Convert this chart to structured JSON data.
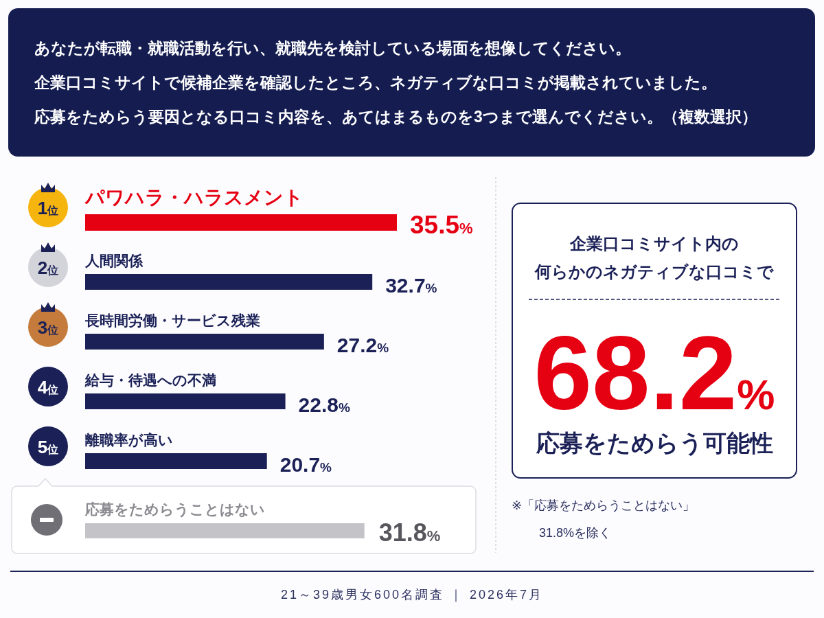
{
  "chart_data": [
    {
      "type": "bar",
      "orientation": "horizontal",
      "title": "あなたが転職・就職活動を行い、就職先を検討している場面を想像してください。企業口コミサイトで候補企業を確認したところ、ネガティブな口コミが掲載されていました。応募をためらう要因となる口コミ内容を、あてはまるものを3つまで選んでください。（複数選択）",
      "categories": [
        "パワハラ・ハラスメント",
        "人間関係",
        "長時間労働・サービス残業",
        "給与・待遇への不満",
        "離職率が高い",
        "応募をためらうことはない"
      ],
      "values": [
        35.5,
        32.7,
        27.2,
        22.8,
        20.7,
        31.8
      ],
      "colors": [
        "#e50012",
        "#1b2157",
        "#1b2157",
        "#1b2157",
        "#1b2157",
        "#c3c3c8"
      ],
      "value_labels": [
        "35.5%",
        "32.7%",
        "27.2%",
        "22.8%",
        "20.7%",
        "31.8%"
      ],
      "annotations": [
        "1位",
        "2位",
        "3位",
        "4位",
        "5位"
      ]
    },
    {
      "type": "other",
      "title": "企業口コミサイト内の何らかのネガティブな口コミで",
      "annotations": [
        "68.2%",
        "応募をためらう可能性",
        "※「応募をためらうことはない」\n31.8%を除く",
        "21～39歳男女600名調査 ｜ 2026年7月"
      ]
    }
  ]
}
